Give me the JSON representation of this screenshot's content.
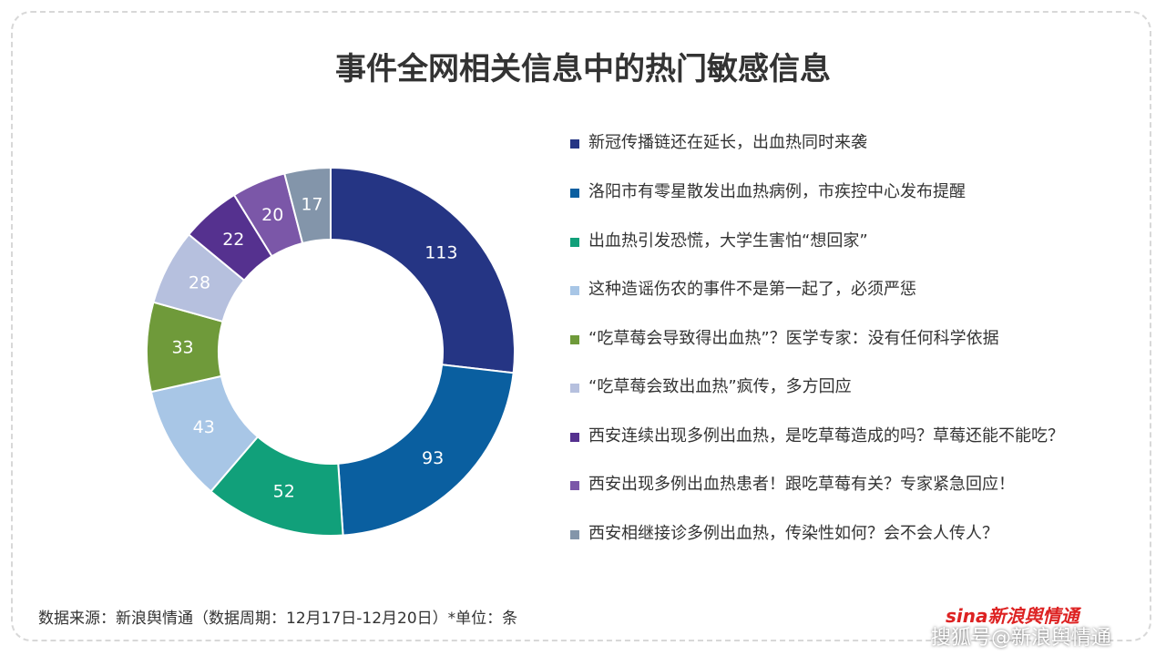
{
  "chart_data": {
    "type": "pie",
    "title": "事件全网相关信息中的热门敏感信息",
    "categories": [
      "新冠传播链还在延长，出血热同时来袭",
      "洛阳市有零星散发出血热病例，市疾控中心发布提醒",
      "出血热引发恐慌，大学生害怕“想回家”",
      "这种造谣伤农的事件不是第一起了，必须严惩",
      "“吃草莓会导致得出血热”？医学专家：没有任何科学依据",
      "“吃草莓会致出血热”疯传，多方回应",
      "西安连续出现多例出血热，是吃草莓造成的吗？草莓还能不能吃？",
      "西安出现多例出血热患者！跟吃草莓有关？专家紧急回应！",
      "西安相继接诊多例出血热，传染性如何？会不会人传人？"
    ],
    "values": [
      113,
      93,
      52,
      43,
      33,
      28,
      22,
      20,
      17
    ],
    "colors": [
      "#253584",
      "#0a5fa0",
      "#11a07a",
      "#a8c6e6",
      "#6f9a3a",
      "#b6c0de",
      "#55318f",
      "#7b57a8",
      "#8395aa"
    ],
    "donut": true,
    "legend": "right"
  },
  "source": "数据来源：新浪舆情通（数据周期：12月17日-12月20日）*单位：条",
  "logo": "sina新浪舆情通",
  "watermark": "搜狐号@新浪舆情通"
}
